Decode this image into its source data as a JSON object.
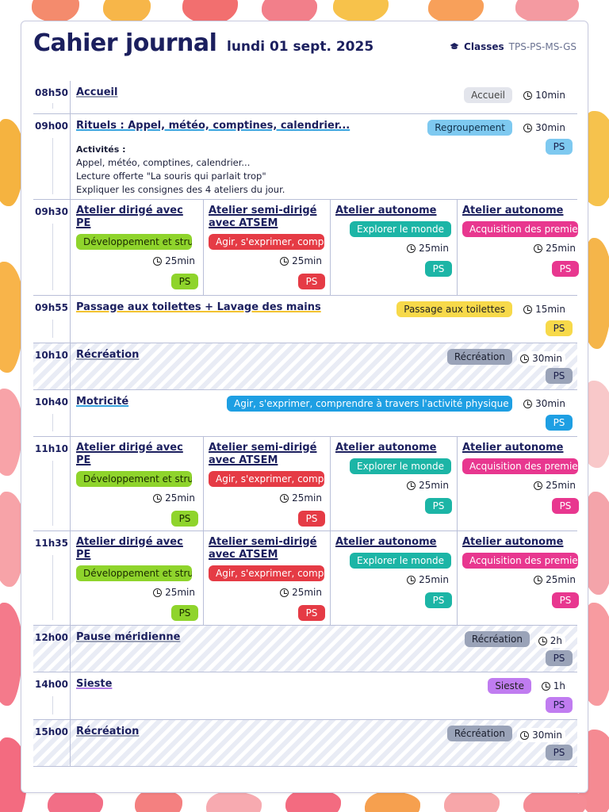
{
  "header": {
    "title": "Cahier journal",
    "date": "lundi 01 sept. 2025",
    "classes_label": "Classes",
    "classes_value": "TPS-PS-MS-GS"
  },
  "level": "PS",
  "rows": {
    "r1": {
      "time": "08h50",
      "title": "Accueil",
      "tag": "Accueil",
      "duration": "10min"
    },
    "r2": {
      "time": "09h00",
      "title": "Rituels : Appel, météo, comptines, calendrier...",
      "tag": "Regroupement",
      "duration": "30min",
      "activities_label": "Activités :",
      "activities": [
        "Appel, météo, comptines, calendrier...",
        "Lecture offerte \"La souris qui parlait trop\"",
        "Expliquer les consignes des 4 ateliers du jour."
      ]
    },
    "r3": {
      "time": "09h30"
    },
    "r4": {
      "time": "09h55",
      "title": "Passage aux toilettes + Lavage des mains",
      "tag": "Passage aux toilettes",
      "duration": "15min"
    },
    "r5": {
      "time": "10h10",
      "title": "Récréation",
      "tag": "Récréation",
      "duration": "30min"
    },
    "r6": {
      "time": "10h40",
      "title": "Motricité",
      "tag": "Agir, s'exprimer, comprendre à travers l'activité physique",
      "duration": "30min"
    },
    "r7": {
      "time": "11h10"
    },
    "r8": {
      "time": "11h35"
    },
    "r9": {
      "time": "12h00",
      "title": "Pause méridienne",
      "tag": "Récréation",
      "duration": "2h"
    },
    "r10": {
      "time": "14h00",
      "title": "Sieste",
      "tag": "Sieste",
      "duration": "1h"
    },
    "r11": {
      "time": "15h00",
      "title": "Récréation",
      "tag": "Récréation",
      "duration": "30min"
    }
  },
  "ateliers": [
    {
      "title": "Atelier dirigé avec PE",
      "tag": "Développement et structuration des premiers apprentissages",
      "duration": "25min"
    },
    {
      "title": "Atelier semi-dirigé avec ATSEM",
      "tag": "Agir, s'exprimer, comprendre",
      "duration": "25min"
    },
    {
      "title": "Atelier autonome",
      "tag": "Explorer le monde",
      "duration": "25min"
    },
    {
      "title": "Atelier autonome",
      "tag": "Acquisition des premiers outils mathématiques",
      "duration": "25min"
    }
  ],
  "colors": {
    "gray": "#e3e5ec",
    "slate": "#9aa3b8",
    "blue": "#7ec9f0",
    "blue_strong": "#1e9fe3",
    "yellow": "#f7d94a",
    "purple": "#c07cf0",
    "green": "#8fd42c",
    "red": "#e53b45",
    "teal": "#1cb5a6",
    "pink": "#e8378f"
  }
}
